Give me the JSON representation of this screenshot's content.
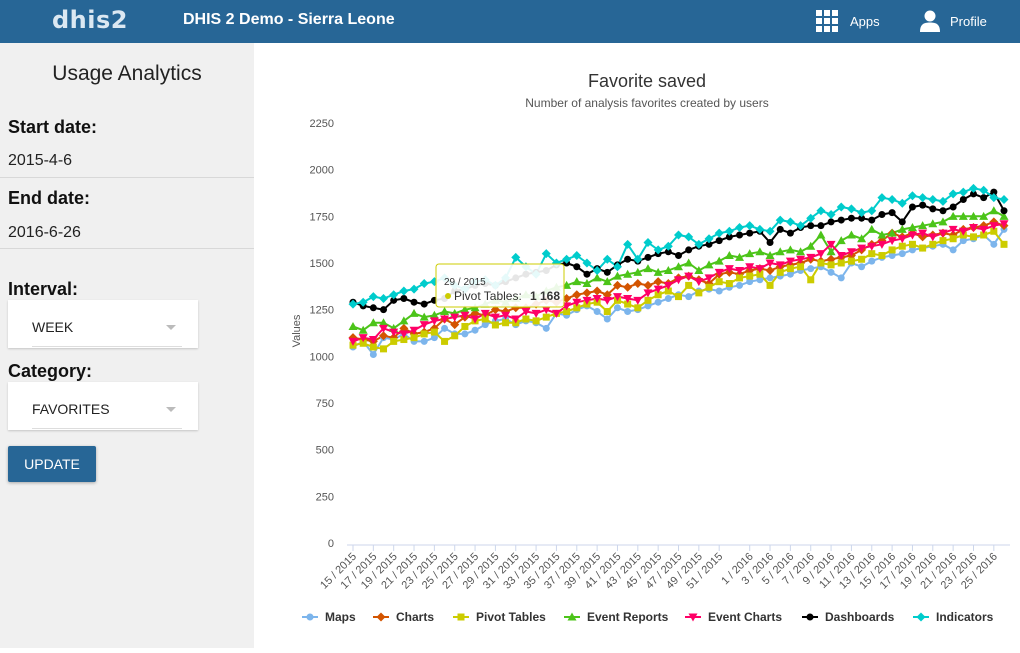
{
  "header": {
    "logo": "dhis2",
    "title": "DHIS 2 Demo - Sierra Leone",
    "apps_label": "Apps",
    "profile_label": "Profile"
  },
  "sidebar": {
    "title": "Usage Analytics",
    "start_label": "Start date:",
    "start_value": "2015-4-6",
    "end_label": "End date:",
    "end_value": "2016-6-26",
    "interval_label": "Interval:",
    "interval_value": "WEEK",
    "category_label": "Category:",
    "category_value": "FAVORITES",
    "update_label": "UPDATE"
  },
  "tooltip": {
    "header": "29 / 2015",
    "series": "Pivot Tables",
    "value": "1 168"
  },
  "chart_data": {
    "type": "line",
    "title": "Favorite saved",
    "subtitle": "Number of analysis favorites created by users",
    "ylabel": "Values",
    "xlabel": "",
    "ylim": [
      0,
      2250
    ],
    "yticks": [
      0,
      250,
      500,
      750,
      1000,
      1250,
      1500,
      1750,
      2000,
      2250
    ],
    "legend_position": "bottom",
    "grid": false,
    "x": [
      "15 / 2015",
      "16 / 2015",
      "17 / 2015",
      "18 / 2015",
      "19 / 2015",
      "20 / 2015",
      "21 / 2015",
      "22 / 2015",
      "23 / 2015",
      "24 / 2015",
      "25 / 2015",
      "26 / 2015",
      "27 / 2015",
      "28 / 2015",
      "29 / 2015",
      "30 / 2015",
      "31 / 2015",
      "32 / 2015",
      "33 / 2015",
      "34 / 2015",
      "35 / 2015",
      "36 / 2015",
      "37 / 2015",
      "38 / 2015",
      "39 / 2015",
      "40 / 2015",
      "41 / 2015",
      "42 / 2015",
      "43 / 2015",
      "44 / 2015",
      "45 / 2015",
      "46 / 2015",
      "47 / 2015",
      "48 / 2015",
      "49 / 2015",
      "50 / 2015",
      "51 / 2015",
      "52 / 2015",
      "53 / 2015",
      "1 / 2016",
      "2 / 2016",
      "3 / 2016",
      "4 / 2016",
      "5 / 2016",
      "6 / 2016",
      "7 / 2016",
      "8 / 2016",
      "9 / 2016",
      "10 / 2016",
      "11 / 2016",
      "12 / 2016",
      "13 / 2016",
      "14 / 2016",
      "15 / 2016",
      "16 / 2016",
      "17 / 2016",
      "18 / 2016",
      "19 / 2016",
      "20 / 2016",
      "21 / 2016",
      "22 / 2016",
      "23 / 2016",
      "24 / 2016",
      "25 / 2016",
      "26 / 2016"
    ],
    "x_tick_labels": [
      "15 / 2015",
      "17 / 2015",
      "19 / 2015",
      "21 / 2015",
      "23 / 2015",
      "25 / 2015",
      "27 / 2015",
      "29 / 2015",
      "31 / 2015",
      "33 / 2015",
      "35 / 2015",
      "37 / 2015",
      "39 / 2015",
      "41 / 2015",
      "43 / 2015",
      "45 / 2015",
      "47 / 2015",
      "49 / 2015",
      "51 / 2015",
      "1 / 2016",
      "3 / 2016",
      "5 / 2016",
      "7 / 2016",
      "9 / 2016",
      "11 / 2016",
      "13 / 2016",
      "15 / 2016",
      "17 / 2016",
      "19 / 2016",
      "21 / 2016",
      "23 / 2016",
      "25 / 2016"
    ],
    "series": [
      {
        "name": "Maps",
        "color": "#7cb5ec",
        "marker": "circle",
        "values": [
          1050,
          1080,
          1010,
          1100,
          1090,
          1120,
          1080,
          1080,
          1100,
          1150,
          1120,
          1120,
          1140,
          1170,
          1190,
          1200,
          1170,
          1190,
          1180,
          1150,
          1230,
          1220,
          1250,
          1270,
          1240,
          1200,
          1260,
          1240,
          1250,
          1270,
          1290,
          1310,
          1330,
          1320,
          1350,
          1360,
          1350,
          1370,
          1380,
          1400,
          1410,
          1420,
          1430,
          1440,
          1460,
          1470,
          1480,
          1450,
          1420,
          1500,
          1480,
          1510,
          1530,
          1540,
          1550,
          1570,
          1580,
          1590,
          1600,
          1570,
          1620,
          1630,
          1650,
          1600,
          1680
        ]
      },
      {
        "name": "Charts",
        "color": "#d35400",
        "marker": "diamond",
        "values": [
          1100,
          1090,
          1080,
          1110,
          1100,
          1150,
          1120,
          1130,
          1150,
          1200,
          1170,
          1210,
          1230,
          1220,
          1250,
          1240,
          1260,
          1260,
          1280,
          1300,
          1290,
          1310,
          1330,
          1340,
          1350,
          1330,
          1380,
          1370,
          1390,
          1380,
          1400,
          1390,
          1420,
          1430,
          1410,
          1390,
          1440,
          1450,
          1440,
          1460,
          1470,
          1460,
          1480,
          1490,
          1500,
          1520,
          1510,
          1520,
          1530,
          1540,
          1570,
          1600,
          1620,
          1660,
          1640,
          1660,
          1640,
          1650,
          1660,
          1650,
          1680,
          1690,
          1700,
          1720,
          1700
        ]
      },
      {
        "name": "Pivot Tables",
        "color": "#cccc00",
        "marker": "square",
        "values": [
          1060,
          1070,
          1050,
          1040,
          1080,
          1090,
          1100,
          1120,
          1130,
          1080,
          1110,
          1160,
          1190,
          1200,
          1168,
          1180,
          1180,
          1200,
          1190,
          1210,
          1230,
          1240,
          1260,
          1280,
          1290,
          1240,
          1300,
          1280,
          1260,
          1300,
          1330,
          1350,
          1320,
          1380,
          1340,
          1370,
          1400,
          1390,
          1420,
          1430,
          1440,
          1380,
          1450,
          1470,
          1480,
          1410,
          1500,
          1490,
          1500,
          1510,
          1520,
          1550,
          1540,
          1570,
          1590,
          1600,
          1580,
          1600,
          1620,
          1630,
          1650,
          1640,
          1650,
          1670,
          1600
        ]
      },
      {
        "name": "Event Reports",
        "color": "#4cc419",
        "marker": "triangle",
        "values": [
          1160,
          1140,
          1180,
          1180,
          1150,
          1190,
          1230,
          1210,
          1220,
          1240,
          1230,
          1250,
          1260,
          1280,
          1300,
          1290,
          1310,
          1330,
          1320,
          1350,
          1370,
          1380,
          1400,
          1390,
          1420,
          1400,
          1430,
          1440,
          1450,
          1470,
          1450,
          1460,
          1480,
          1500,
          1460,
          1490,
          1510,
          1540,
          1530,
          1550,
          1560,
          1540,
          1560,
          1570,
          1560,
          1590,
          1650,
          1560,
          1620,
          1650,
          1630,
          1680,
          1650,
          1660,
          1680,
          1690,
          1700,
          1710,
          1720,
          1750,
          1750,
          1750,
          1750,
          1780,
          1750
        ]
      },
      {
        "name": "Event Charts",
        "color": "#ff0066",
        "marker": "triangle-down",
        "values": [
          1080,
          1100,
          1090,
          1150,
          1130,
          1120,
          1140,
          1170,
          1190,
          1200,
          1210,
          1220,
          1200,
          1230,
          1210,
          1220,
          1200,
          1240,
          1230,
          1250,
          1230,
          1270,
          1290,
          1300,
          1310,
          1300,
          1320,
          1310,
          1300,
          1340,
          1360,
          1380,
          1410,
          1430,
          1400,
          1420,
          1450,
          1470,
          1460,
          1480,
          1470,
          1500,
          1490,
          1510,
          1520,
          1530,
          1550,
          1600,
          1540,
          1560,
          1580,
          1590,
          1600,
          1620,
          1630,
          1650,
          1660,
          1640,
          1660,
          1680,
          1670,
          1690,
          1680,
          1700,
          1710
        ]
      },
      {
        "name": "Dashboards",
        "color": "#000000",
        "marker": "circle",
        "values": [
          1290,
          1270,
          1260,
          1250,
          1300,
          1310,
          1290,
          1280,
          1300,
          1310,
          1350,
          1360,
          1380,
          1390,
          1380,
          1400,
          1420,
          1440,
          1450,
          1460,
          1490,
          1500,
          1480,
          1440,
          1470,
          1450,
          1490,
          1520,
          1510,
          1530,
          1550,
          1560,
          1540,
          1570,
          1590,
          1600,
          1620,
          1640,
          1650,
          1660,
          1670,
          1610,
          1680,
          1660,
          1690,
          1700,
          1700,
          1720,
          1730,
          1740,
          1740,
          1730,
          1760,
          1770,
          1720,
          1800,
          1810,
          1790,
          1780,
          1800,
          1840,
          1870,
          1850,
          1880,
          1780
        ]
      },
      {
        "name": "Indicators",
        "color": "#00cccc",
        "marker": "diamond",
        "values": [
          1280,
          1290,
          1320,
          1310,
          1330,
          1350,
          1360,
          1390,
          1400,
          1420,
          1380,
          1360,
          1400,
          1410,
          1380,
          1420,
          1530,
          1480,
          1440,
          1550,
          1500,
          1520,
          1540,
          1500,
          1460,
          1520,
          1480,
          1600,
          1520,
          1610,
          1570,
          1590,
          1650,
          1640,
          1600,
          1630,
          1660,
          1670,
          1690,
          1700,
          1680,
          1670,
          1730,
          1720,
          1700,
          1740,
          1780,
          1760,
          1800,
          1790,
          1770,
          1780,
          1850,
          1840,
          1820,
          1860,
          1850,
          1840,
          1830,
          1870,
          1880,
          1900,
          1890,
          1850,
          1840
        ]
      }
    ]
  }
}
